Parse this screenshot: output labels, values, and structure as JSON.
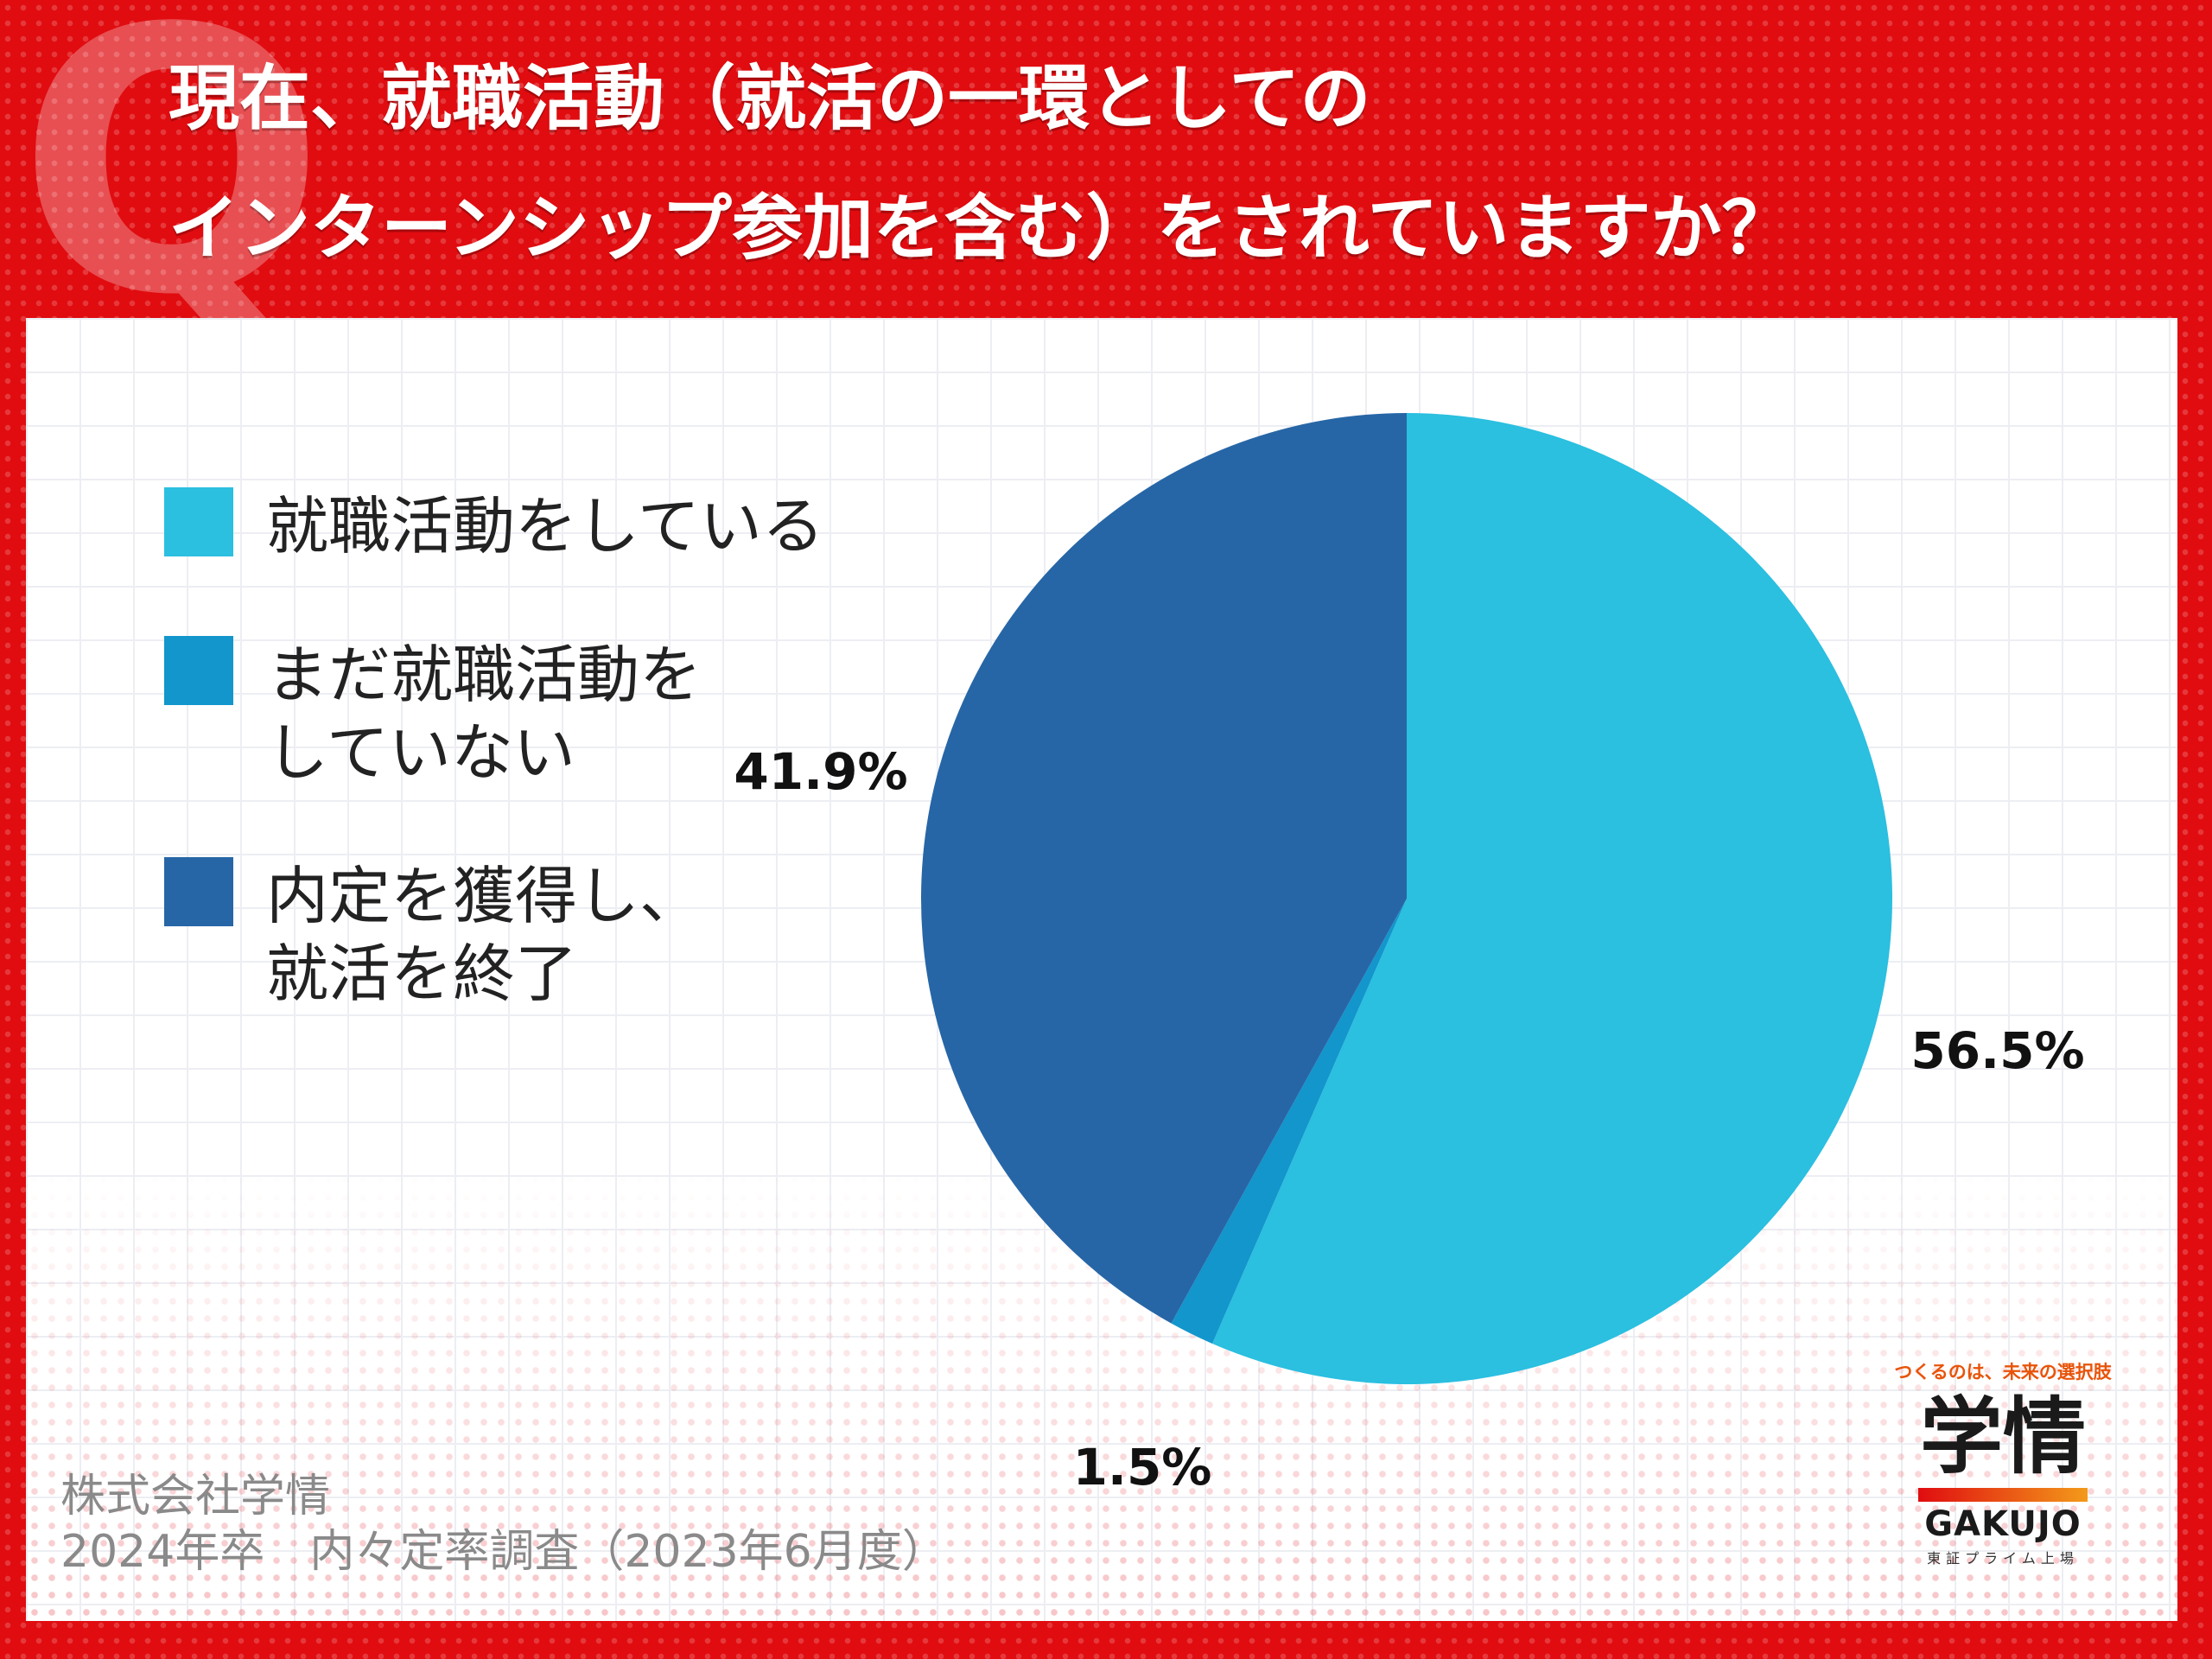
{
  "title_lines": [
    "現在、就職活動（就活の一環としての",
    "インターンシップ参加を含む）をされていますか？"
  ],
  "q_mark": "Q",
  "chart_data": {
    "type": "pie",
    "title": "",
    "slices": [
      {
        "label": "就職活動をしている",
        "value": 56.5,
        "value_label": "56.5%",
        "color": "#2bbfe0"
      },
      {
        "label": "まだ就職活動を\nしていない",
        "value": 1.5,
        "value_label": "1.5%",
        "color": "#1296cc"
      },
      {
        "label": "内定を獲得し、\n就活を終了",
        "value": 41.9,
        "value_label": "41.9%",
        "color": "#2766a6"
      }
    ],
    "start_angle_deg": 0,
    "direction": "clockwise",
    "legend_position": "left"
  },
  "source": {
    "company": "株式会社学情",
    "survey": "2024年卒　内々定率調査（2023年6月度）"
  },
  "logo": {
    "tagline": "つくるのは、未来の選択肢",
    "mark": "学情",
    "name": "GAKUJO",
    "sub": "東証プライム上場"
  }
}
